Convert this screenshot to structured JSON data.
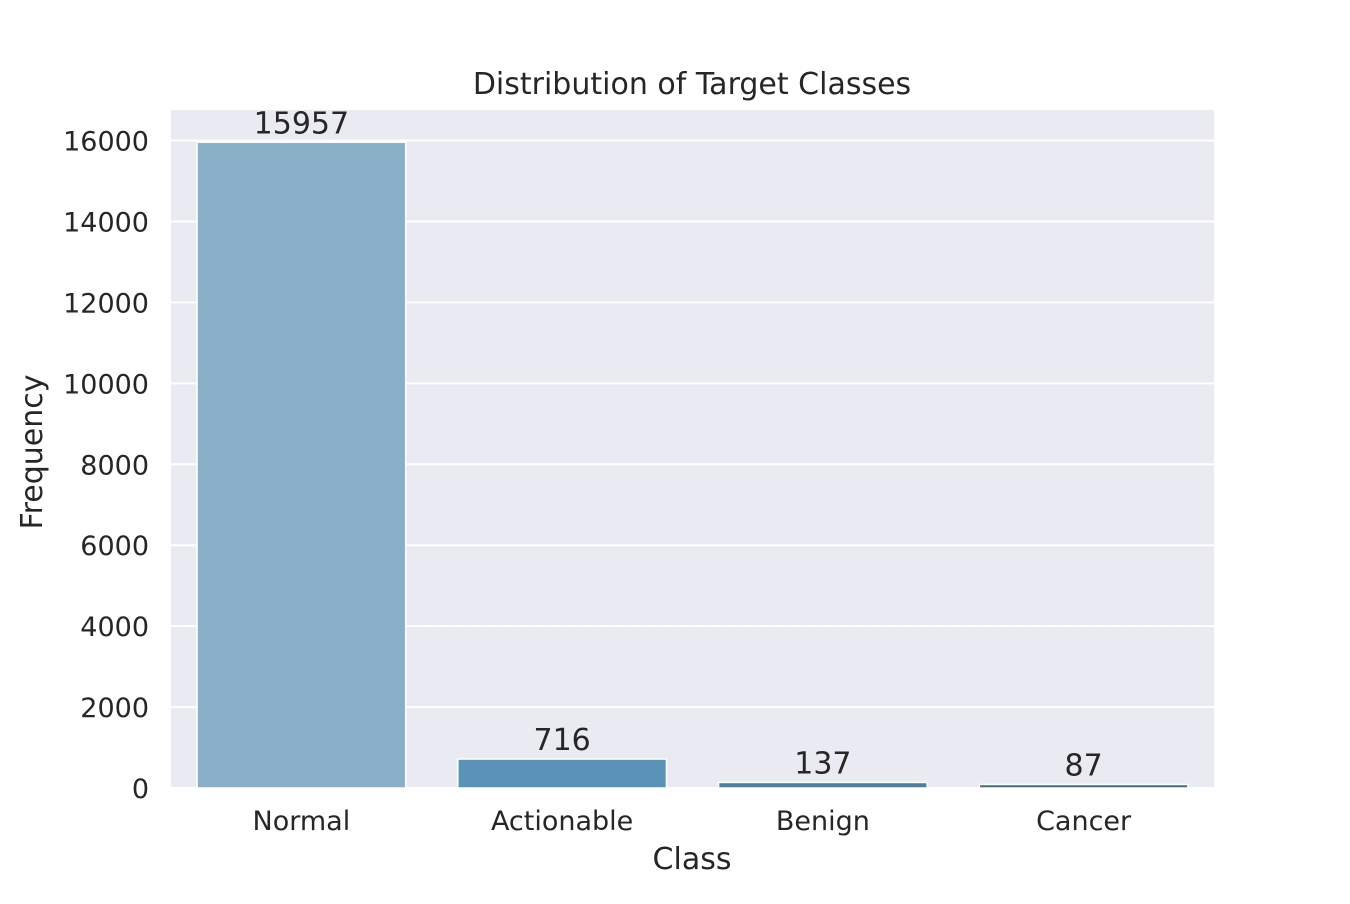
{
  "chart_data": {
    "type": "bar",
    "title": "Distribution of Target Classes",
    "xlabel": "Class",
    "ylabel": "Frequency",
    "categories": [
      "Normal",
      "Actionable",
      "Benign",
      "Cancer"
    ],
    "values": [
      15957,
      716,
      137,
      87
    ],
    "data_labels": [
      "15957",
      "716",
      "137",
      "87"
    ],
    "ylim": [
      0,
      16755
    ],
    "yticks": [
      0,
      2000,
      4000,
      6000,
      8000,
      10000,
      12000,
      14000,
      16000
    ],
    "ytick_labels": [
      "0",
      "2000",
      "4000",
      "6000",
      "8000",
      "10000",
      "12000",
      "14000",
      "16000"
    ],
    "grid": true,
    "legend": "none",
    "colors": {
      "plot_background": "#eaeaf2",
      "grid": "#ffffff",
      "bars": [
        "#89afc9",
        "#5b93b8",
        "#4a7fa3",
        "#3f6e8d"
      ]
    }
  }
}
